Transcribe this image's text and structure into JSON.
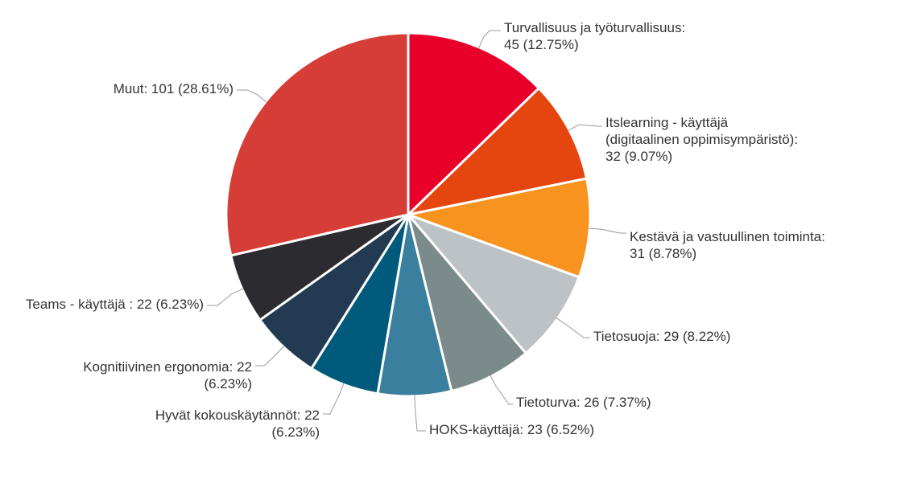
{
  "chart_data": {
    "type": "pie",
    "title": "",
    "start_angle_deg": 0,
    "direction": "clockwise",
    "slices": [
      {
        "name": "Turvallisuus ja työturvallisuus",
        "value": 45,
        "percent": "12.75%",
        "color": "#e8002a",
        "label_lines": [
          "Turvallisuus ja työturvallisuus:",
          "45 (12.75%)"
        ]
      },
      {
        "name": "Itslearning - käyttäjä (digitaalinen oppimisympäristö)",
        "value": 32,
        "percent": "9.07%",
        "color": "#e5450f",
        "label_lines": [
          "Itslearning - käyttäjä",
          "(digitaalinen oppimisympäristö):",
          "32 (9.07%)"
        ]
      },
      {
        "name": "Kestävä ja vastuullinen toiminta",
        "value": 31,
        "percent": "8.78%",
        "color": "#f7931e",
        "label_lines": [
          "Kestävä ja vastuullinen toiminta:",
          "31 (8.78%)"
        ]
      },
      {
        "name": "Tietosuoja",
        "value": 29,
        "percent": "8.22%",
        "color": "#bdc2c6",
        "label_lines": [
          "Tietosuoja: 29 (8.22%)"
        ]
      },
      {
        "name": "Tietoturva",
        "value": 26,
        "percent": "7.37%",
        "color": "#7b8b8b",
        "label_lines": [
          "Tietoturva: 26 (7.37%)"
        ]
      },
      {
        "name": "HOKS-käyttäjä",
        "value": 23,
        "percent": "6.52%",
        "color": "#3a7f9d",
        "label_lines": [
          "HOKS-käyttäjä: 23 (6.52%)"
        ]
      },
      {
        "name": "Hyvät kokouskäytännöt",
        "value": 22,
        "percent": "6.23%",
        "color": "#005a7c",
        "label_lines": [
          "Hyvät kokouskäytännöt: 22",
          "(6.23%)"
        ]
      },
      {
        "name": "Kognitiivinen ergonomia",
        "value": 22,
        "percent": "6.23%",
        "color": "#223b52",
        "label_lines": [
          "Kognitiivinen ergonomia: 22",
          "(6.23%)"
        ]
      },
      {
        "name": "Teams - käyttäjä",
        "value": 22,
        "percent": "6.23%",
        "color": "#2c2c30",
        "label_lines": [
          "Teams - käyttäjä : 22 (6.23%)"
        ]
      },
      {
        "name": "Muut",
        "value": 101,
        "percent": "28.61%",
        "color": "#d63d36",
        "label_lines": [
          "Muut: 101 (28.61%)"
        ]
      }
    ]
  }
}
